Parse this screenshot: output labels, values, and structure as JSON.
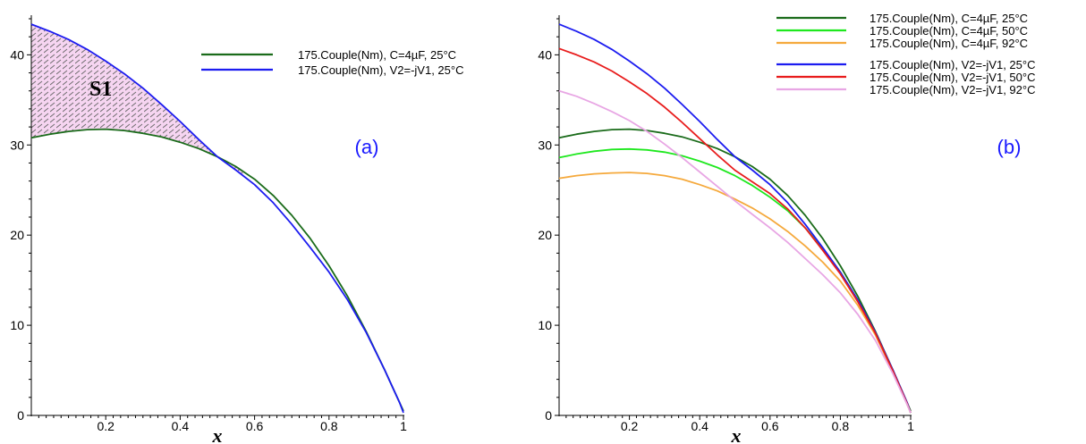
{
  "chart_data": [
    {
      "type": "line",
      "panel_label": "(a)",
      "panel_label_color": "#1a1aff",
      "xlabel": "x",
      "ylabel": "",
      "xlim": [
        0,
        1
      ],
      "ylim": [
        0,
        44
      ],
      "x_ticks": [
        0.2,
        0.4,
        0.6,
        0.8,
        1
      ],
      "x_tick_labels": [
        "0.2",
        "0.4",
        "0.6",
        "0.8",
        "1"
      ],
      "y_ticks": [
        0,
        10,
        20,
        30,
        40
      ],
      "y_tick_labels": [
        "0",
        "10",
        "20",
        "30",
        "40"
      ],
      "legend_position": "top-right",
      "grid": false,
      "shaded_region": {
        "label": "S1",
        "between": [
          "175.Couple(Nm), V2=-jV1, 25°C",
          "175.Couple(Nm), C=4µF, 25°C"
        ],
        "x_range": [
          0,
          0.57
        ],
        "fill_color": "#f6d5f1",
        "hatch_color": "#6a6a6a"
      },
      "series": [
        {
          "name": "175.Couple(Nm), C=4µF, 25°C",
          "color": "#1a6b1a",
          "x": [
            0,
            0.05,
            0.1,
            0.15,
            0.2,
            0.25,
            0.3,
            0.35,
            0.4,
            0.45,
            0.5,
            0.55,
            0.6,
            0.65,
            0.7,
            0.75,
            0.8,
            0.85,
            0.9,
            0.95,
            0.97,
            0.99,
            1
          ],
          "values": [
            30.8,
            31.2,
            31.5,
            31.7,
            31.75,
            31.6,
            31.3,
            30.9,
            30.3,
            29.6,
            28.7,
            27.6,
            26.2,
            24.4,
            22.2,
            19.6,
            16.6,
            13.2,
            9.3,
            5.0,
            3.2,
            1.4,
            0.5
          ]
        },
        {
          "name": "175.Couple(Nm), V2=-jV1, 25°C",
          "color": "#1c1cf0",
          "x": [
            0,
            0.05,
            0.1,
            0.15,
            0.2,
            0.25,
            0.3,
            0.35,
            0.4,
            0.45,
            0.5,
            0.55,
            0.6,
            0.65,
            0.7,
            0.75,
            0.8,
            0.85,
            0.9,
            0.95,
            0.97,
            0.99,
            1
          ],
          "values": [
            43.4,
            42.6,
            41.7,
            40.6,
            39.3,
            37.9,
            36.3,
            34.5,
            32.6,
            30.6,
            28.7,
            27.2,
            25.6,
            23.6,
            21.2,
            18.6,
            15.9,
            12.8,
            9.2,
            5.0,
            3.2,
            1.4,
            0.3
          ]
        }
      ]
    },
    {
      "type": "line",
      "panel_label": "(b)",
      "panel_label_color": "#1a1aff",
      "xlabel": "x",
      "ylabel": "",
      "xlim": [
        0,
        1
      ],
      "ylim": [
        0,
        44
      ],
      "x_ticks": [
        0.2,
        0.4,
        0.6,
        0.8,
        1
      ],
      "x_tick_labels": [
        "0.2",
        "0.4",
        "0.6",
        "0.8",
        "1"
      ],
      "y_ticks": [
        0,
        10,
        20,
        30,
        40
      ],
      "y_tick_labels": [
        "0",
        "10",
        "20",
        "30",
        "40"
      ],
      "legend_position": "top-right",
      "grid": false,
      "series": [
        {
          "name": "175.Couple(Nm), C=4µF, 25°C",
          "color": "#1a6b1a",
          "x": [
            0,
            0.05,
            0.1,
            0.15,
            0.2,
            0.25,
            0.3,
            0.35,
            0.4,
            0.45,
            0.5,
            0.55,
            0.6,
            0.65,
            0.7,
            0.75,
            0.8,
            0.85,
            0.9,
            0.95,
            0.97,
            0.99,
            1
          ],
          "values": [
            30.8,
            31.2,
            31.5,
            31.7,
            31.75,
            31.6,
            31.3,
            30.9,
            30.3,
            29.6,
            28.7,
            27.6,
            26.2,
            24.4,
            22.2,
            19.6,
            16.6,
            13.2,
            9.3,
            5.0,
            3.2,
            1.4,
            0.5
          ]
        },
        {
          "name": "175.Couple(Nm), C=4µF, 50°C",
          "color": "#1ee81e",
          "x": [
            0,
            0.05,
            0.1,
            0.15,
            0.2,
            0.25,
            0.3,
            0.35,
            0.4,
            0.45,
            0.5,
            0.55,
            0.6,
            0.65,
            0.7,
            0.75,
            0.8,
            0.85,
            0.9,
            0.95,
            0.97,
            0.99,
            1
          ],
          "values": [
            28.6,
            29.0,
            29.3,
            29.5,
            29.55,
            29.45,
            29.2,
            28.8,
            28.2,
            27.5,
            26.6,
            25.5,
            24.2,
            22.7,
            20.8,
            18.5,
            15.9,
            12.8,
            9.1,
            4.9,
            3.1,
            1.3,
            0.3
          ]
        },
        {
          "name": "175.Couple(Nm), C=4µF, 92°C",
          "color": "#f5a93c",
          "x": [
            0,
            0.05,
            0.1,
            0.15,
            0.2,
            0.25,
            0.3,
            0.35,
            0.4,
            0.45,
            0.5,
            0.55,
            0.6,
            0.65,
            0.7,
            0.75,
            0.8,
            0.85,
            0.9,
            0.95,
            0.97,
            0.99,
            1
          ],
          "values": [
            26.3,
            26.6,
            26.8,
            26.9,
            26.95,
            26.85,
            26.6,
            26.2,
            25.6,
            24.9,
            24.0,
            23.0,
            21.8,
            20.4,
            18.8,
            17.0,
            14.9,
            12.2,
            8.9,
            4.8,
            3.0,
            1.2,
            0.3
          ]
        },
        {
          "name": "175.Couple(Nm), V2=-jV1, 25°C",
          "color": "#1c1cf0",
          "x": [
            0,
            0.05,
            0.1,
            0.15,
            0.2,
            0.25,
            0.3,
            0.35,
            0.4,
            0.45,
            0.5,
            0.55,
            0.6,
            0.65,
            0.7,
            0.75,
            0.8,
            0.85,
            0.9,
            0.95,
            0.97,
            0.99,
            1
          ],
          "values": [
            43.4,
            42.6,
            41.7,
            40.6,
            39.3,
            37.9,
            36.3,
            34.5,
            32.6,
            30.6,
            28.7,
            27.2,
            25.6,
            23.6,
            21.2,
            18.6,
            15.9,
            12.8,
            9.2,
            5.0,
            3.2,
            1.4,
            0.3
          ]
        },
        {
          "name": "175.Couple(Nm), V2=-jV1, 50°C",
          "color": "#e81c1c",
          "x": [
            0,
            0.05,
            0.1,
            0.15,
            0.2,
            0.25,
            0.3,
            0.35,
            0.4,
            0.45,
            0.5,
            0.55,
            0.6,
            0.65,
            0.7,
            0.75,
            0.8,
            0.85,
            0.9,
            0.95,
            0.97,
            0.99,
            1
          ],
          "values": [
            40.7,
            40.0,
            39.2,
            38.2,
            37.0,
            35.7,
            34.2,
            32.5,
            30.7,
            28.9,
            27.2,
            25.9,
            24.6,
            22.9,
            20.8,
            18.3,
            15.7,
            12.6,
            9.1,
            4.9,
            3.1,
            1.3,
            0.3
          ]
        },
        {
          "name": "175.Couple(Nm), V2=-jV1, 92°C",
          "color": "#e8a6e4",
          "x": [
            0,
            0.05,
            0.1,
            0.15,
            0.2,
            0.25,
            0.3,
            0.35,
            0.4,
            0.45,
            0.5,
            0.55,
            0.6,
            0.65,
            0.7,
            0.75,
            0.8,
            0.85,
            0.9,
            0.95,
            0.97,
            0.99,
            1
          ],
          "values": [
            36.0,
            35.4,
            34.6,
            33.7,
            32.7,
            31.5,
            30.1,
            28.6,
            27.0,
            25.4,
            23.8,
            22.3,
            20.8,
            19.2,
            17.4,
            15.6,
            13.6,
            11.2,
            8.3,
            4.6,
            2.9,
            1.2,
            0.3
          ]
        }
      ]
    }
  ]
}
